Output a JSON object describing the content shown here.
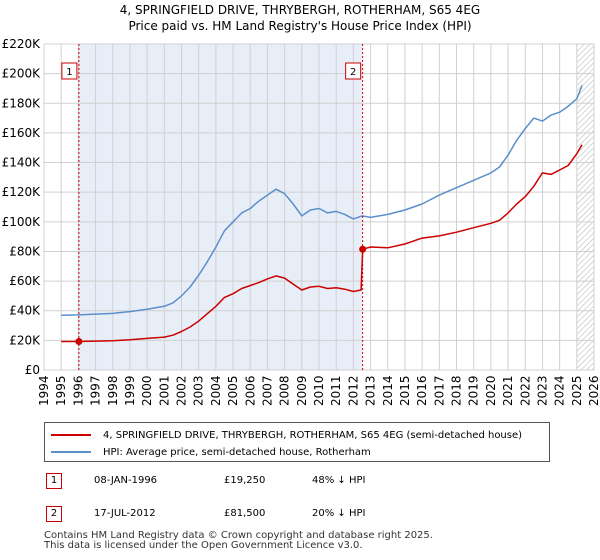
{
  "chart_data": {
    "type": "line",
    "title": "4, SPRINGFIELD DRIVE, THRYBERGH, ROTHERHAM, S65 4EG",
    "subtitle": "Price paid vs. HM Land Registry's House Price Index (HPI)",
    "xlim": [
      1994,
      2026
    ],
    "ylim": [
      0,
      220000
    ],
    "x_ticks": [
      "1994",
      "1995",
      "1996",
      "1997",
      "1998",
      "1999",
      "2000",
      "2001",
      "2002",
      "2003",
      "2004",
      "2005",
      "2006",
      "2007",
      "2008",
      "2009",
      "2010",
      "2011",
      "2012",
      "2013",
      "2014",
      "2015",
      "2016",
      "2017",
      "2018",
      "2019",
      "2020",
      "2021",
      "2022",
      "2023",
      "2024",
      "2025",
      "2026"
    ],
    "y_ticks": [
      {
        "value": 0,
        "label": "£0"
      },
      {
        "value": 20000,
        "label": "£20K"
      },
      {
        "value": 40000,
        "label": "£40K"
      },
      {
        "value": 60000,
        "label": "£60K"
      },
      {
        "value": 80000,
        "label": "£80K"
      },
      {
        "value": 100000,
        "label": "£100K"
      },
      {
        "value": 120000,
        "label": "£120K"
      },
      {
        "value": 140000,
        "label": "£140K"
      },
      {
        "value": 160000,
        "label": "£160K"
      },
      {
        "value": 180000,
        "label": "£180K"
      },
      {
        "value": 200000,
        "label": "£200K"
      },
      {
        "value": 220000,
        "label": "£220K"
      }
    ],
    "grid": true,
    "shaded_period": [
      1996.03,
      2012.54
    ],
    "hatched_period": [
      2025.0,
      2026.0
    ],
    "series": [
      {
        "name": "4, SPRINGFIELD DRIVE, THRYBERGH, ROTHERHAM, S65 4EG (semi-detached house)",
        "color": "#cc0000",
        "x": [
          1995.0,
          1996.0,
          1997.0,
          1998.0,
          1999.0,
          2000.0,
          2001.0,
          2001.5,
          2002.0,
          2002.5,
          2003.0,
          2003.5,
          2004.0,
          2004.5,
          2005.0,
          2005.5,
          2006.0,
          2006.5,
          2007.0,
          2007.5,
          2008.0,
          2008.5,
          2009.0,
          2009.5,
          2010.0,
          2010.5,
          2011.0,
          2011.5,
          2012.0,
          2012.45,
          2012.54,
          2013.0,
          2014.0,
          2015.0,
          2016.0,
          2017.0,
          2018.0,
          2019.0,
          2020.0,
          2020.5,
          2021.0,
          2021.5,
          2022.0,
          2022.5,
          2023.0,
          2023.5,
          2024.0,
          2024.5,
          2025.0,
          2025.3
        ],
        "y": [
          19200,
          19250,
          19500,
          19800,
          20400,
          21300,
          22200,
          23500,
          26000,
          29000,
          33000,
          38000,
          43000,
          49000,
          51500,
          55000,
          57000,
          59000,
          61500,
          63500,
          62000,
          58000,
          54000,
          56000,
          56500,
          55000,
          55500,
          54500,
          53000,
          54000,
          81500,
          83000,
          82500,
          85000,
          89000,
          90500,
          93000,
          96000,
          99000,
          101000,
          106000,
          112000,
          117000,
          124000,
          133000,
          132000,
          135000,
          138000,
          146000,
          152000
        ]
      },
      {
        "name": "HPI: Average price, semi-detached house, Rotherham",
        "color": "#5b8fc9",
        "x": [
          1995.0,
          1996.0,
          1997.0,
          1998.0,
          1999.0,
          2000.0,
          2001.0,
          2001.5,
          2002.0,
          2002.5,
          2003.0,
          2003.5,
          2004.0,
          2004.5,
          2005.0,
          2005.5,
          2006.0,
          2006.5,
          2007.0,
          2007.5,
          2008.0,
          2008.5,
          2009.0,
          2009.5,
          2010.0,
          2010.5,
          2011.0,
          2011.5,
          2012.0,
          2012.5,
          2013.0,
          2014.0,
          2015.0,
          2016.0,
          2017.0,
          2018.0,
          2019.0,
          2020.0,
          2020.5,
          2021.0,
          2021.5,
          2022.0,
          2022.5,
          2023.0,
          2023.5,
          2024.0,
          2024.5,
          2025.0,
          2025.3
        ],
        "y": [
          37000,
          37200,
          37700,
          38200,
          39400,
          41000,
          43000,
          45300,
          50000,
          56000,
          64000,
          73000,
          83000,
          94000,
          100000,
          106000,
          109000,
          114000,
          118000,
          122000,
          119000,
          112000,
          104000,
          108000,
          109000,
          106000,
          107000,
          105000,
          102000,
          104000,
          103000,
          105000,
          108000,
          112000,
          118000,
          123000,
          128000,
          133000,
          137000,
          145000,
          155000,
          163000,
          170000,
          168000,
          172000,
          174000,
          178000,
          183000,
          192000
        ]
      }
    ],
    "annotations": [
      {
        "label": "1",
        "x": 1996.03,
        "y": 19250
      },
      {
        "label": "2",
        "x": 2012.54,
        "y": 81500
      }
    ]
  },
  "legend": {
    "property_label": "4, SPRINGFIELD DRIVE, THRYBERGH, ROTHERHAM, S65 4EG (semi-detached house)",
    "hpi_label": "HPI: Average price, semi-detached house, Rotherham"
  },
  "sales": [
    {
      "marker": "1",
      "date": "08-JAN-1996",
      "price": "£19,250",
      "hpi_diff": "48% ↓ HPI"
    },
    {
      "marker": "2",
      "date": "17-JUL-2012",
      "price": "£81,500",
      "hpi_diff": "20% ↓ HPI"
    }
  ],
  "footer": {
    "line1": "Contains HM Land Registry data © Crown copyright and database right 2025.",
    "line2": "This data is licensed under the Open Government Licence v3.0."
  },
  "colors": {
    "property": "#cc0000",
    "hpi": "#5b8fc9",
    "shade": "#e8eef8",
    "grid": "#d0d0d0"
  }
}
